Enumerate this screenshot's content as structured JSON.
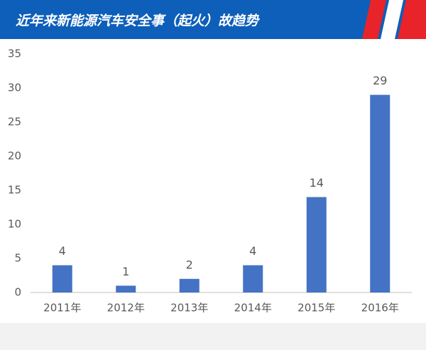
{
  "chart_data": {
    "type": "bar",
    "title": "近年来新能源汽车安全事（起火）故趋势",
    "categories": [
      "2011年",
      "2012年",
      "2013年",
      "2014年",
      "2015年",
      "2016年"
    ],
    "values": [
      4,
      1,
      2,
      4,
      14,
      29
    ],
    "color": "#4472c4",
    "ylim": [
      0,
      35
    ],
    "yticks": [
      0,
      5,
      10,
      15,
      20,
      25,
      30,
      35
    ],
    "grid": false
  }
}
